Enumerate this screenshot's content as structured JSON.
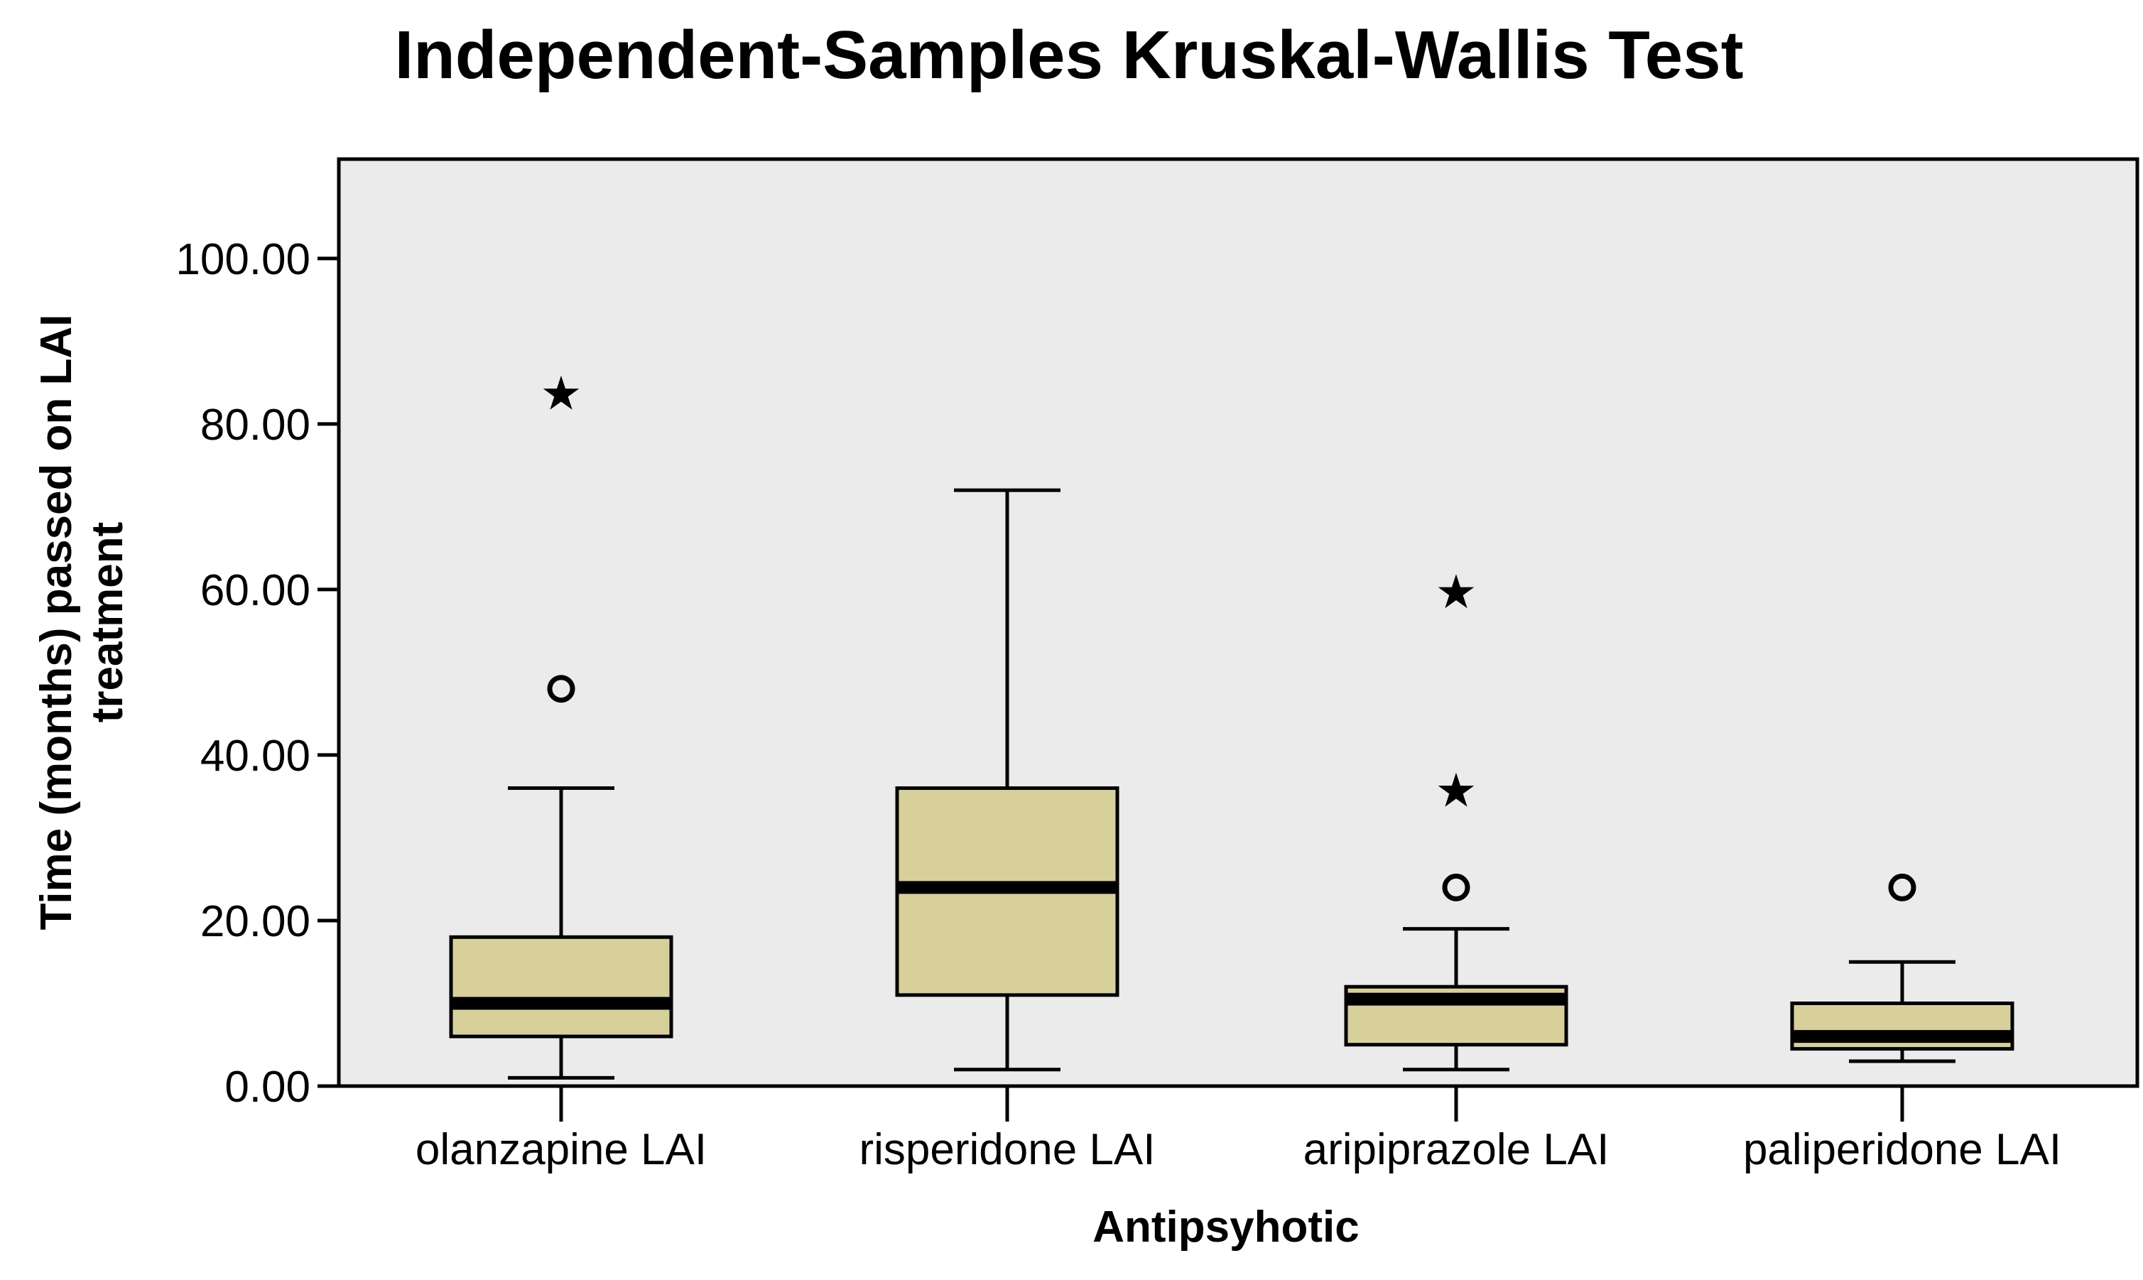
{
  "chart_data": {
    "type": "boxplot",
    "title": "Independent-Samples Kruskal-Wallis Test",
    "xlabel": "Antipsyhotic",
    "ylabel_lines": [
      "Time (months) passed on LAI",
      "treatment"
    ],
    "ylim": [
      0,
      112
    ],
    "yticks": [
      0,
      20,
      40,
      60,
      80,
      100
    ],
    "ytick_labels": [
      "0.00",
      "20.00",
      "40.00",
      "60.00",
      "80.00",
      "100.00"
    ],
    "grid": false,
    "colors": {
      "plot_background": "#ebebeb",
      "box_fill": "#d8d09a",
      "box_stroke": "#000000",
      "median": "#000000"
    },
    "categories": [
      "olanzapine LAI",
      "risperidone LAI",
      "aripiprazole LAI",
      "paliperidone LAI"
    ],
    "boxes": [
      {
        "category": "olanzapine LAI",
        "whisker_low": 1,
        "q1": 6,
        "median": 10,
        "q3": 18,
        "whisker_high": 36,
        "outliers_circle": [
          48
        ],
        "outliers_extreme": [
          84
        ]
      },
      {
        "category": "risperidone LAI",
        "whisker_low": 2,
        "q1": 11,
        "median": 24,
        "q3": 36,
        "whisker_high": 72,
        "outliers_circle": [],
        "outliers_extreme": []
      },
      {
        "category": "aripiprazole LAI",
        "whisker_low": 2,
        "q1": 5,
        "median": 10.5,
        "q3": 12,
        "whisker_high": 19,
        "outliers_circle": [
          24
        ],
        "outliers_extreme": [
          36,
          60
        ]
      },
      {
        "category": "paliperidone LAI",
        "whisker_low": 3,
        "q1": 4.5,
        "median": 6,
        "q3": 10,
        "whisker_high": 15,
        "outliers_circle": [
          24
        ],
        "outliers_extreme": []
      }
    ]
  }
}
